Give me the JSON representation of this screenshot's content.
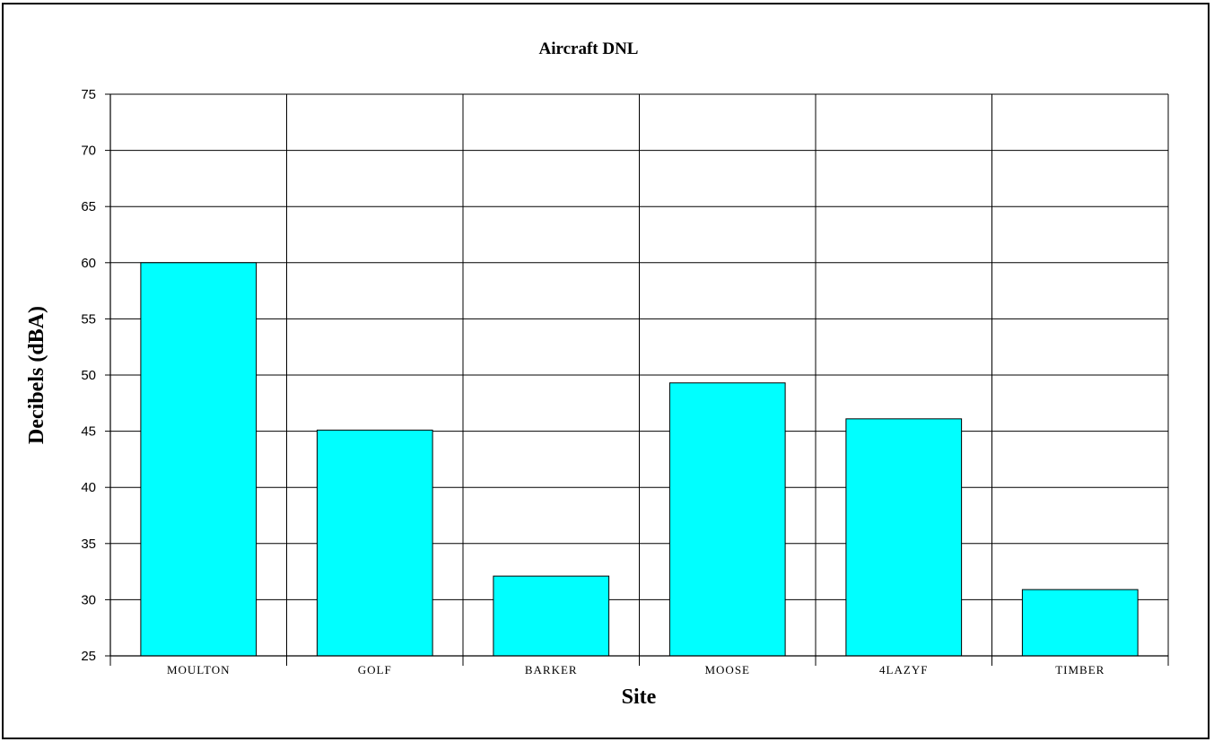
{
  "chart_data": {
    "type": "bar",
    "title": "Aircraft DNL",
    "xlabel": "Site",
    "ylabel": "Decibels (dBA)",
    "categories": [
      "MOULTON",
      "GOLF",
      "BARKER",
      "MOOSE",
      "4LAZYF",
      "TIMBER"
    ],
    "values": [
      60,
      45.1,
      32.1,
      49.3,
      46.1,
      30.9
    ],
    "ylim": [
      25,
      75
    ],
    "yticks": [
      25,
      30,
      35,
      40,
      45,
      50,
      55,
      60,
      65,
      70,
      75
    ],
    "grid": true,
    "legend": "none",
    "colors": {
      "bar_fill": "#00FFFF",
      "bar_stroke": "#000000",
      "grid": "#000000",
      "background": "#FFFFFF"
    }
  }
}
